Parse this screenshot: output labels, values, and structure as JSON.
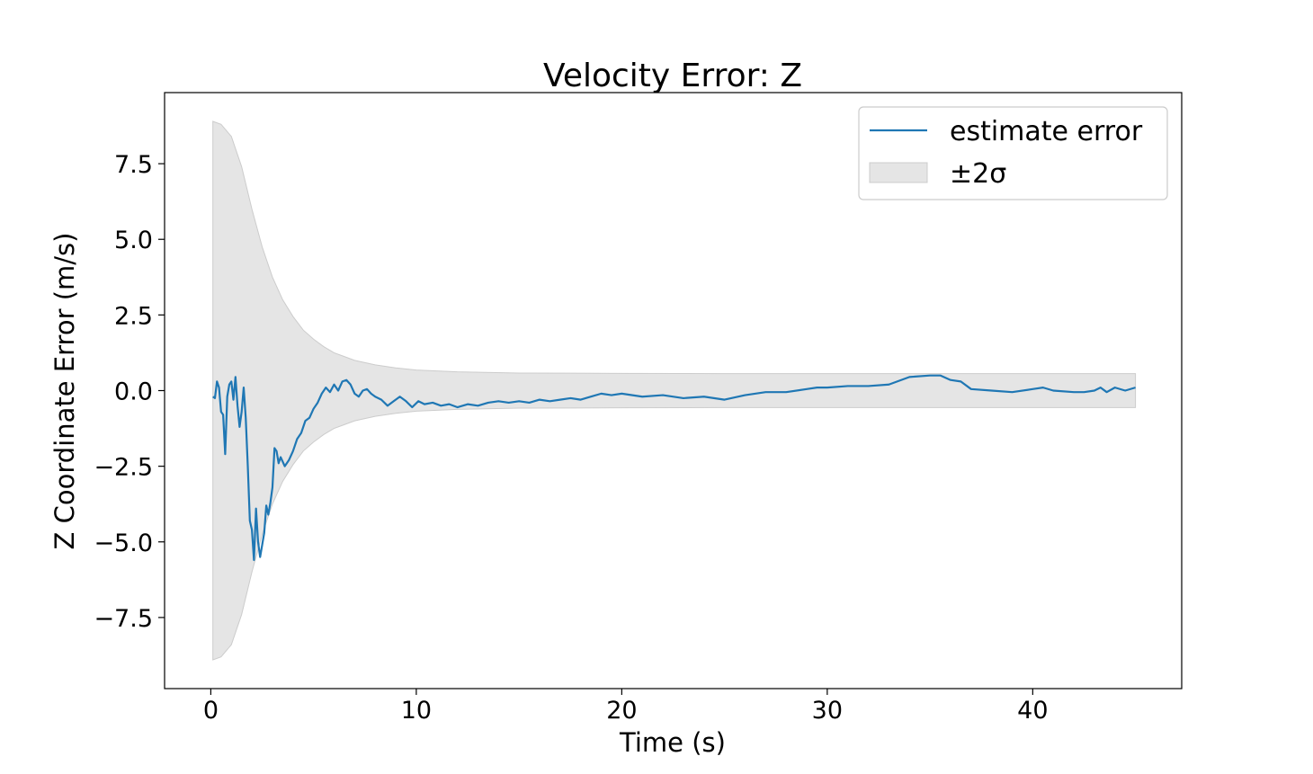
{
  "chart_data": {
    "type": "line",
    "title": "Velocity Error: Z",
    "xlabel": "Time (s)",
    "ylabel": "Z Coordinate Error (m/s)",
    "xlim": [
      -2.25,
      47.25
    ],
    "ylim": [
      -9.85,
      9.85
    ],
    "x_ticks": [
      0,
      10,
      20,
      30,
      40
    ],
    "x_tick_labels": [
      "0",
      "10",
      "20",
      "30",
      "40"
    ],
    "y_ticks": [
      -7.5,
      -5.0,
      -2.5,
      0.0,
      2.5,
      5.0,
      7.5
    ],
    "y_tick_labels": [
      "−7.5",
      "−5.0",
      "−2.5",
      "0.0",
      "2.5",
      "5.0",
      "7.5"
    ],
    "grid": false,
    "legend_position": "upper right",
    "colors": {
      "line": "#1f77b4",
      "band_fill": "#e5e5e5",
      "band_edge": "#cccccc"
    },
    "band": {
      "name": "±2σ",
      "x": [
        0.1,
        0.5,
        1.0,
        1.5,
        2.0,
        2.5,
        3.0,
        3.5,
        4.0,
        4.5,
        5.0,
        5.5,
        6.0,
        7.0,
        8.0,
        9.0,
        10.0,
        12.0,
        15.0,
        20.0,
        25.0,
        30.0,
        35.0,
        40.0,
        45.0
      ],
      "upper": [
        8.9,
        8.8,
        8.4,
        7.4,
        6.0,
        4.75,
        3.75,
        3.0,
        2.45,
        2.0,
        1.7,
        1.45,
        1.25,
        1.0,
        0.85,
        0.75,
        0.68,
        0.62,
        0.58,
        0.57,
        0.56,
        0.56,
        0.56,
        0.56,
        0.56
      ]
    },
    "series": [
      {
        "name": "estimate error",
        "x": [
          0.1,
          0.2,
          0.3,
          0.4,
          0.5,
          0.6,
          0.7,
          0.8,
          0.9,
          1.0,
          1.1,
          1.2,
          1.3,
          1.4,
          1.5,
          1.6,
          1.7,
          1.8,
          1.9,
          2.0,
          2.1,
          2.2,
          2.3,
          2.4,
          2.5,
          2.6,
          2.7,
          2.8,
          2.9,
          3.0,
          3.1,
          3.2,
          3.3,
          3.4,
          3.6,
          3.8,
          4.0,
          4.2,
          4.4,
          4.6,
          4.8,
          5.0,
          5.2,
          5.4,
          5.6,
          5.8,
          6.0,
          6.2,
          6.4,
          6.6,
          6.8,
          7.0,
          7.2,
          7.4,
          7.6,
          7.8,
          8.0,
          8.3,
          8.6,
          8.9,
          9.2,
          9.5,
          9.8,
          10.1,
          10.4,
          10.8,
          11.2,
          11.6,
          12.0,
          12.5,
          13.0,
          13.5,
          14.0,
          14.5,
          15.0,
          15.5,
          16.0,
          16.5,
          17.0,
          17.5,
          18.0,
          18.5,
          19.0,
          19.5,
          20.0,
          21.0,
          22.0,
          23.0,
          24.0,
          25.0,
          26.0,
          27.0,
          28.0,
          29.0,
          29.5,
          30.0,
          31.0,
          32.0,
          33.0,
          34.0,
          35.0,
          35.5,
          36.0,
          36.5,
          37.0,
          38.0,
          39.0,
          40.0,
          40.5,
          41.0,
          42.0,
          42.5,
          43.0,
          43.3,
          43.6,
          44.0,
          44.5,
          45.0
        ],
        "y": [
          -0.2,
          -0.25,
          0.3,
          0.1,
          -0.7,
          -0.8,
          -2.1,
          -0.2,
          0.2,
          0.3,
          -0.3,
          0.45,
          -0.5,
          -1.2,
          -0.7,
          0.1,
          -0.9,
          -2.5,
          -4.3,
          -4.6,
          -5.6,
          -3.9,
          -5.0,
          -5.5,
          -5.1,
          -4.7,
          -3.8,
          -4.1,
          -3.7,
          -3.2,
          -1.9,
          -2.0,
          -2.4,
          -2.2,
          -2.5,
          -2.3,
          -2.0,
          -1.6,
          -1.4,
          -1.0,
          -0.9,
          -0.6,
          -0.4,
          -0.1,
          0.1,
          -0.05,
          0.2,
          0.0,
          0.3,
          0.35,
          0.2,
          -0.1,
          -0.2,
          -0.0,
          0.05,
          -0.1,
          -0.2,
          -0.3,
          -0.5,
          -0.35,
          -0.2,
          -0.35,
          -0.55,
          -0.35,
          -0.45,
          -0.4,
          -0.5,
          -0.45,
          -0.55,
          -0.45,
          -0.5,
          -0.4,
          -0.35,
          -0.4,
          -0.35,
          -0.4,
          -0.3,
          -0.35,
          -0.3,
          -0.25,
          -0.3,
          -0.2,
          -0.1,
          -0.15,
          -0.1,
          -0.2,
          -0.15,
          -0.25,
          -0.2,
          -0.3,
          -0.15,
          -0.05,
          -0.05,
          0.05,
          0.1,
          0.1,
          0.15,
          0.15,
          0.2,
          0.45,
          0.5,
          0.5,
          0.35,
          0.3,
          0.05,
          0.0,
          -0.05,
          0.05,
          0.1,
          0.0,
          -0.05,
          -0.05,
          0.0,
          0.1,
          -0.05,
          0.1,
          0.0,
          0.1
        ]
      }
    ]
  }
}
